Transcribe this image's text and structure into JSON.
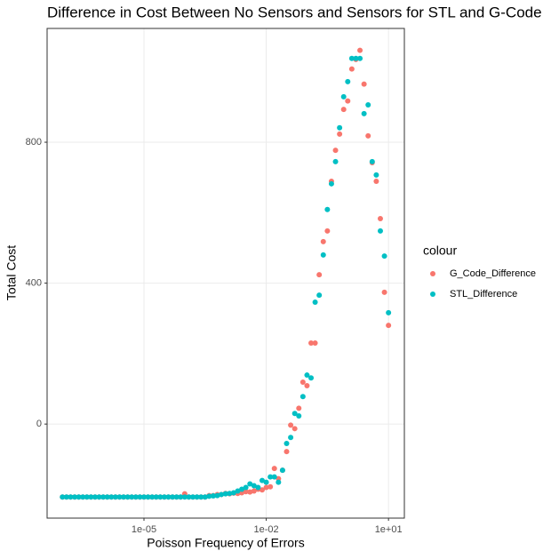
{
  "chart_data": {
    "type": "scatter",
    "title": "Difference in Cost Between No Sensors and Sensors for STL and G-Code",
    "x_label": "Poisson Frequency of Errors",
    "y_label": "Total Cost",
    "legend_title": "colour",
    "legend_position": "right",
    "x_scale": "log",
    "grid": true,
    "xlim": [
      4.2e-08,
      24.5
    ],
    "ylim": [
      -267,
      1123
    ],
    "xticks": [
      {
        "value": 1e-05,
        "label": "1e-05"
      },
      {
        "value": 0.01,
        "label": "1e-02"
      },
      {
        "value": 10,
        "label": "1e+01"
      }
    ],
    "yticks": [
      0,
      400,
      800
    ],
    "x": [
      1e-07,
      1.259e-07,
      1.585e-07,
      1.995e-07,
      2.512e-07,
      3.162e-07,
      3.981e-07,
      5.012e-07,
      6.31e-07,
      7.943e-07,
      1e-06,
      1.259e-06,
      1.585e-06,
      1.995e-06,
      2.512e-06,
      3.162e-06,
      3.981e-06,
      5.012e-06,
      6.31e-06,
      7.943e-06,
      1e-05,
      1.259e-05,
      1.585e-05,
      1.995e-05,
      2.512e-05,
      3.162e-05,
      3.981e-05,
      5.012e-05,
      6.31e-05,
      7.943e-05,
      0.0001,
      0.0001259,
      0.0001585,
      0.0001995,
      0.0002512,
      0.0003162,
      0.0003981,
      0.0005012,
      0.000631,
      0.0007943,
      0.001,
      0.001259,
      0.001585,
      0.001995,
      0.002512,
      0.003162,
      0.003981,
      0.005012,
      0.00631,
      0.007943,
      0.01,
      0.01259,
      0.01585,
      0.01995,
      0.02512,
      0.03162,
      0.03981,
      0.05012,
      0.0631,
      0.07943,
      0.1,
      0.1259,
      0.1585,
      0.1995,
      0.2512,
      0.3162,
      0.3981,
      0.5012,
      0.631,
      0.7943,
      1,
      1.259,
      1.585,
      1.995,
      2.512,
      3.162,
      3.981,
      5.012,
      6.31,
      7.943,
      10
    ],
    "series": [
      {
        "name": "G_Code_Difference",
        "color": "#F8766D",
        "values": [
          -207,
          -207,
          -207,
          -207,
          -207,
          -207,
          -207,
          -207,
          -207,
          -207,
          -207,
          -207,
          -207,
          -207,
          -207,
          -207,
          -207,
          -207,
          -207,
          -207,
          -207,
          -207,
          -207,
          -207,
          -207,
          -207,
          -207,
          -207,
          -207,
          -207,
          -198,
          -207,
          -207,
          -207,
          -207,
          -207,
          -203,
          -203,
          -200,
          -200,
          -197,
          -198,
          -196,
          -197,
          -195,
          -192,
          -193,
          -190,
          -185,
          -187,
          -180,
          -178,
          -126,
          -155,
          -131,
          -78,
          -3,
          -13,
          45,
          119,
          109,
          230,
          230,
          424,
          518,
          548,
          689,
          777,
          823,
          893,
          917,
          1008,
          1035,
          1061,
          965,
          818,
          742,
          689,
          583,
          374,
          280
        ]
      },
      {
        "name": "STL_Difference",
        "color": "#00BFC4",
        "values": [
          -207,
          -207,
          -207,
          -207,
          -207,
          -207,
          -207,
          -207,
          -207,
          -207,
          -207,
          -207,
          -207,
          -207,
          -207,
          -207,
          -207,
          -207,
          -207,
          -207,
          -207,
          -207,
          -207,
          -207,
          -207,
          -207,
          -207,
          -207,
          -207,
          -207,
          -207,
          -207,
          -207,
          -207,
          -207,
          -207,
          -205,
          -204,
          -203,
          -200,
          -198,
          -197,
          -195,
          -190,
          -185,
          -180,
          -170,
          -175,
          -180,
          -160,
          -165,
          -150,
          -150,
          -165,
          -131,
          -55,
          -38,
          30,
          23,
          78,
          139,
          131,
          346,
          366,
          480,
          609,
          682,
          745,
          841,
          929,
          972,
          1038,
          1038,
          1038,
          881,
          906,
          745,
          707,
          548,
          477,
          316
        ]
      }
    ]
  }
}
